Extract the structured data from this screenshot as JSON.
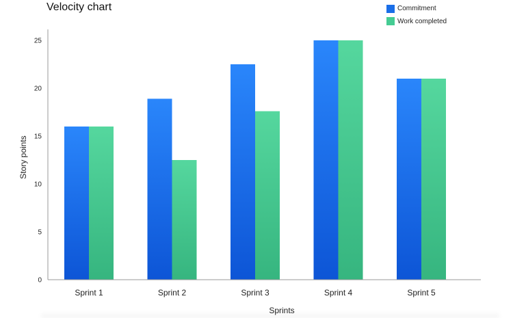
{
  "chart_data": {
    "type": "bar",
    "title": "Velocity chart",
    "xlabel": "Sprints",
    "ylabel": "Story points",
    "categories": [
      "Sprint 1",
      "Sprint 2",
      "Sprint 3",
      "Sprint 4",
      "Sprint 5"
    ],
    "series": [
      {
        "name": "Commitment",
        "values": [
          16,
          18.9,
          22.5,
          25,
          21
        ],
        "color": "#1a6ee8"
      },
      {
        "name": "Work completed",
        "values": [
          16,
          12.5,
          17.6,
          25,
          21
        ],
        "color": "#45cc93"
      }
    ],
    "ylim": [
      0,
      25
    ],
    "yticks": [
      0,
      5,
      10,
      15,
      20,
      25
    ],
    "grid": false,
    "legend_position": "top-right"
  }
}
